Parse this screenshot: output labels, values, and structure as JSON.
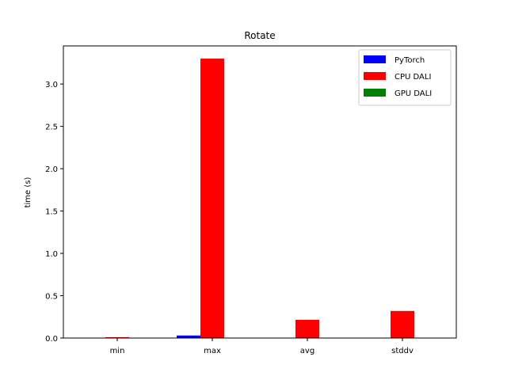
{
  "chart_data": {
    "type": "bar",
    "title": "Rotate",
    "xlabel": "",
    "ylabel": "time (s)",
    "categories": [
      "min",
      "max",
      "avg",
      "stddv"
    ],
    "series": [
      {
        "name": "PyTorch",
        "color": "#0000ff",
        "values": [
          0.002,
          0.03,
          0.003,
          0.004
        ]
      },
      {
        "name": "CPU DALI",
        "color": "#ff0000",
        "values": [
          0.01,
          3.3,
          0.215,
          0.32
        ]
      },
      {
        "name": "GPU DALI",
        "color": "#008000",
        "values": [
          0.0,
          0.0,
          0.0,
          0.0
        ]
      }
    ],
    "ylim": [
      0,
      3.45
    ],
    "yticks": [
      "0.0",
      "0.5",
      "1.0",
      "1.5",
      "2.0",
      "2.5",
      "3.0"
    ],
    "legend_position": "top-right",
    "grid": false
  }
}
